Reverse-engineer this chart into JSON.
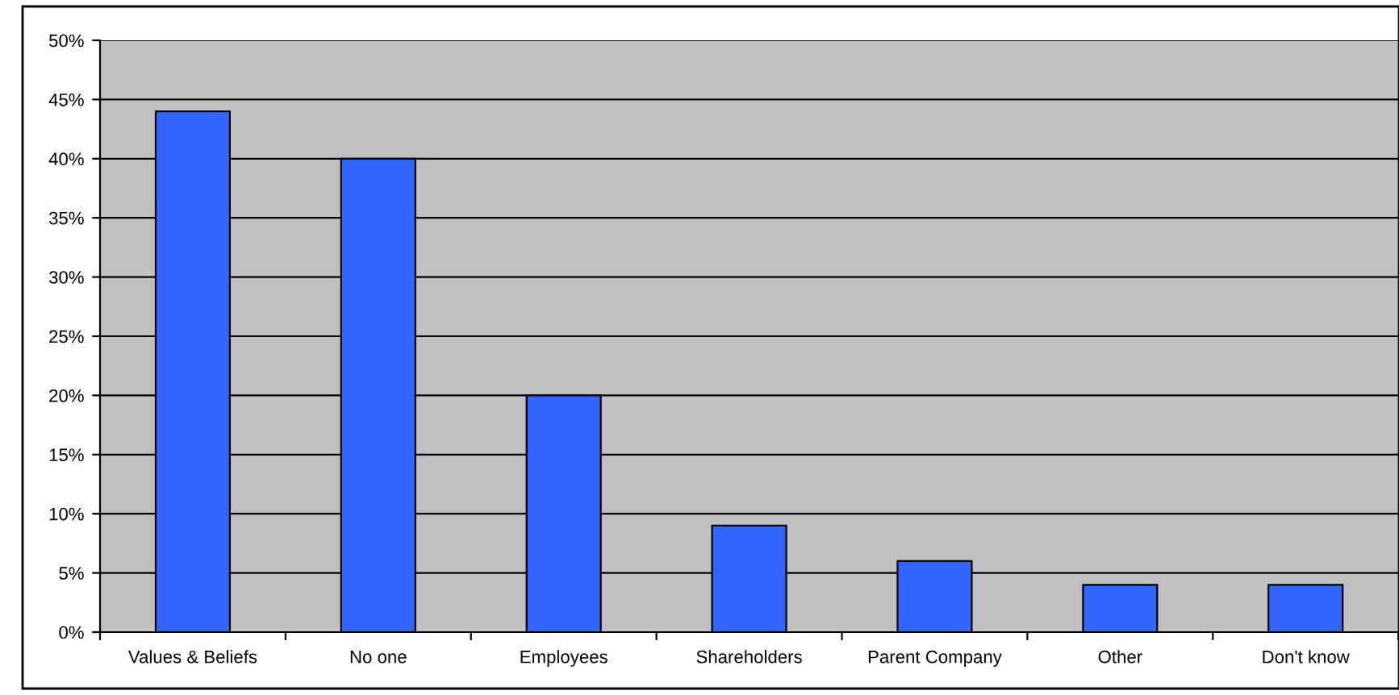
{
  "chart_data": {
    "type": "bar",
    "categories": [
      "Values & Beliefs",
      "No one",
      "Employees",
      "Shareholders",
      "Parent Company",
      "Other",
      "Don't know"
    ],
    "values": [
      44,
      40,
      20,
      9,
      6,
      4,
      4
    ],
    "color": "#3366ff",
    "ylim": [
      0,
      50
    ],
    "yticks": [
      {
        "value": 0,
        "label": "0%"
      },
      {
        "value": 5,
        "label": "5%"
      },
      {
        "value": 10,
        "label": "10%"
      },
      {
        "value": 15,
        "label": "15%"
      },
      {
        "value": 20,
        "label": "20%"
      },
      {
        "value": 25,
        "label": "25%"
      },
      {
        "value": 30,
        "label": "30%"
      },
      {
        "value": 35,
        "label": "35%"
      },
      {
        "value": 40,
        "label": "40%"
      },
      {
        "value": 45,
        "label": "45%"
      },
      {
        "value": 50,
        "label": "50%"
      }
    ],
    "grid": "y"
  }
}
